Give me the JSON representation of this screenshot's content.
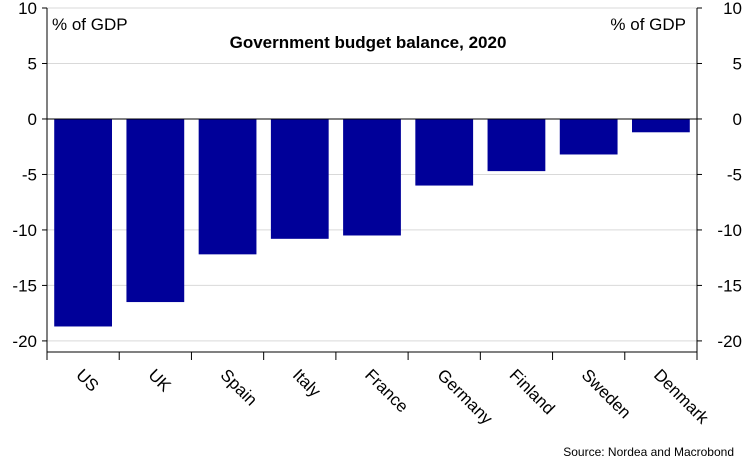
{
  "chart_data": {
    "type": "bar",
    "title": "Government budget balance, 2020",
    "ylabel_left": "% of GDP",
    "ylabel_right": "% of GDP",
    "categories": [
      "US",
      "UK",
      "Spain",
      "Italy",
      "France",
      "Germany",
      "Finland",
      "Sweden",
      "Denmark"
    ],
    "values": [
      -18.7,
      -16.5,
      -12.2,
      -10.8,
      -10.5,
      -6.0,
      -4.7,
      -3.2,
      -1.2
    ],
    "ylim": [
      -21,
      10
    ],
    "yticks": [
      10,
      5,
      0,
      -5,
      -10,
      -15,
      -20
    ],
    "grid": true,
    "bar_color": "#000099",
    "source": "Source: Nordea and Macrobond"
  }
}
